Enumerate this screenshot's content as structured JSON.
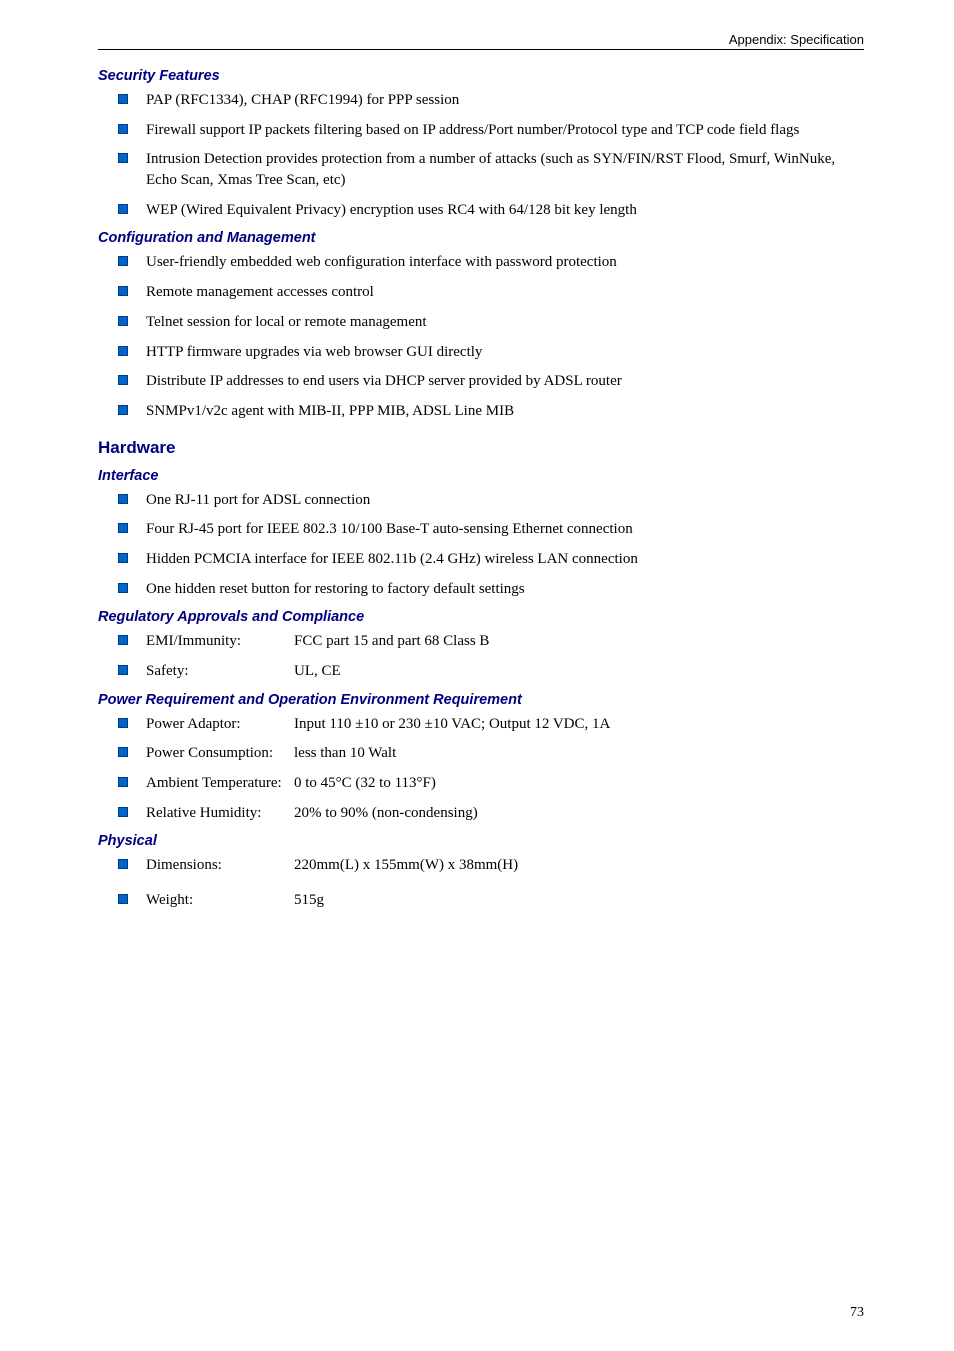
{
  "header": {
    "breadcrumb": "Appendix: Specification"
  },
  "sections": {
    "security": {
      "title": "Security Features",
      "items": [
        "PAP (RFC1334), CHAP (RFC1994) for PPP session",
        "Firewall support IP packets filtering based on IP address/Port number/Protocol type and TCP code field flags",
        "Intrusion Detection provides protection from a number of attacks (such as SYN/FIN/RST Flood, Smurf, WinNuke, Echo Scan, Xmas Tree Scan, etc)",
        "WEP (Wired Equivalent Privacy) encryption uses RC4 with 64/128 bit key length"
      ]
    },
    "config": {
      "title": "Configuration and Management",
      "items": [
        "User-friendly embedded web configuration interface with password protection",
        "Remote management accesses control",
        "Telnet session for local or remote management",
        "HTTP firmware upgrades via web browser GUI directly",
        "Distribute IP addresses to end users via DHCP server provided by ADSL router",
        "SNMPv1/v2c agent with MIB-II, PPP MIB, ADSL Line MIB"
      ]
    },
    "hardware": {
      "title": "Hardware"
    },
    "interface": {
      "title": "Interface",
      "items": [
        "One RJ-11 port for ADSL connection",
        "Four RJ-45 port for IEEE 802.3 10/100 Base-T auto-sensing Ethernet connection",
        "Hidden PCMCIA interface for IEEE 802.11b (2.4 GHz) wireless LAN connection",
        "One hidden reset button for restoring to factory default settings"
      ]
    },
    "regulatory": {
      "title": "Regulatory Approvals and Compliance",
      "items": [
        {
          "key": "EMI/Immunity:",
          "val": "FCC part 15 and part 68 Class B"
        },
        {
          "key": "Safety:",
          "val": "UL, CE"
        }
      ]
    },
    "power": {
      "title": "Power Requirement and Operation Environment Requirement",
      "items": [
        {
          "key": "Power Adaptor:",
          "val": "Input 110 ±10 or 230 ±10 VAC; Output 12 VDC, 1A"
        },
        {
          "key": "Power Consumption:",
          "val": "less than 10 Walt"
        },
        {
          "key": "Ambient Temperature:",
          "val": "0 to 45°C (32 to 113°F)"
        },
        {
          "key": "Relative Humidity:",
          "val": "20% to 90% (non-condensing)"
        }
      ]
    },
    "physical": {
      "title": "Physical",
      "items": [
        {
          "key": "Dimensions:",
          "val": "220mm(L) x 155mm(W) x 38mm(H)"
        },
        {
          "key": "Weight:",
          "val": "515g"
        }
      ]
    }
  },
  "page_number": "73",
  "styling": {
    "bullet_color": "#0066cc",
    "heading_color": "#000080",
    "body_font": "Times New Roman",
    "heading_font": "Verdana"
  }
}
